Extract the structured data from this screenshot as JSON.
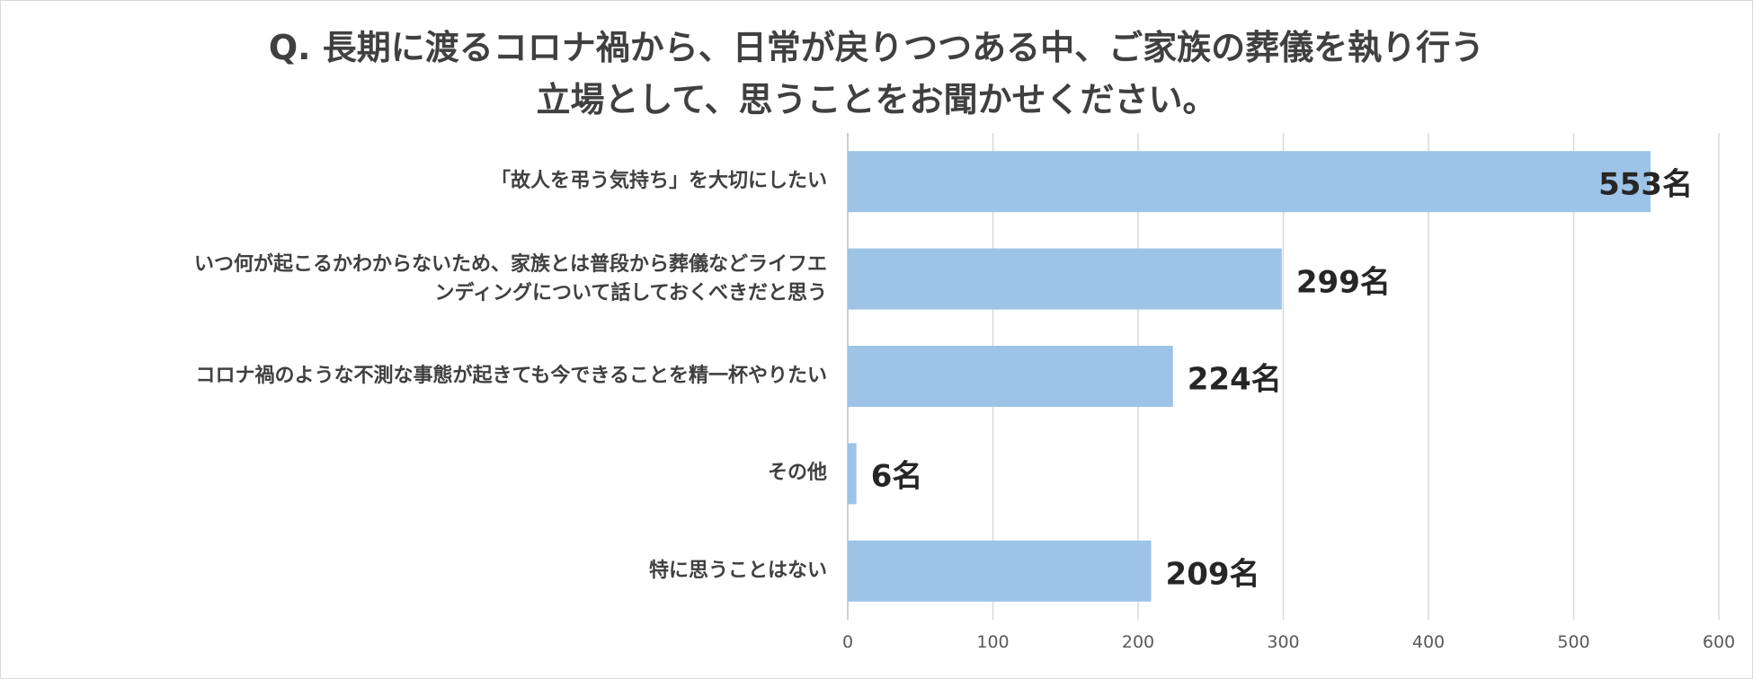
{
  "chart_data": {
    "type": "bar",
    "orientation": "horizontal",
    "title_lines": [
      "Q. 長期に渡るコロナ禍から、日常が戻りつつある中、ご家族の葬儀を執り行う",
      "立場として、思うことをお聞かせください。"
    ],
    "categories": [
      [
        "「故人を弔う気持ち」を大切にしたい"
      ],
      [
        "いつ何が起こるかわからないため、家族とは普段から葬儀などライフエ",
        "ンディングについて話しておくべきだと思う"
      ],
      [
        "コロナ禍のような不測な事態が起きても今できることを精一杯やりたい"
      ],
      [
        "その他"
      ],
      [
        "特に思うことはない"
      ]
    ],
    "values": [
      553,
      299,
      224,
      6,
      209
    ],
    "value_labels": [
      "553名",
      "299名",
      "224名",
      "6名",
      "209名"
    ],
    "xlim": [
      0,
      600
    ],
    "xticks": [
      0,
      100,
      200,
      300,
      400,
      500,
      600
    ],
    "grid": true,
    "legend": "none",
    "bar_color": "#9dc3e6",
    "grid_color": "#d9d9d9"
  }
}
